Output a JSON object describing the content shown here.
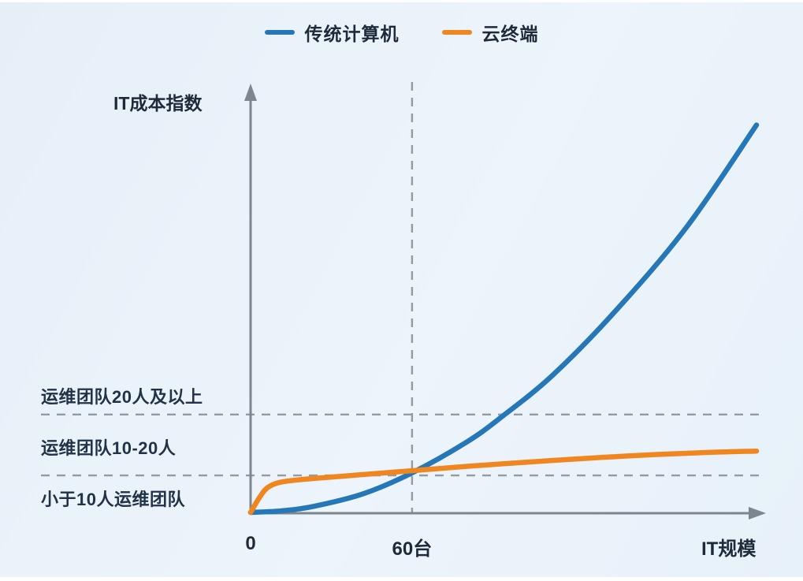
{
  "legend": {
    "items": [
      {
        "label": "传统计算机",
        "color": "#2577b8"
      },
      {
        "label": "云终端",
        "color": "#f0861f"
      }
    ]
  },
  "chart_data": {
    "type": "line",
    "title": "",
    "xlabel": "IT规模",
    "ylabel": "IT成本指数",
    "x_unit": "台",
    "xlim": [
      0,
      188
    ],
    "ylim": [
      0,
      100
    ],
    "grid": false,
    "legend_position": "top-center",
    "x_tick_labels": [
      {
        "label": "0",
        "x": 0
      },
      {
        "label": "60台",
        "x": 60
      }
    ],
    "series": [
      {
        "name": "传统计算机",
        "color": "#2577b8",
        "x": [
          0,
          12,
          24,
          42,
          60,
          80,
          93,
          112,
          135,
          162,
          188
        ],
        "y": [
          0,
          0.4,
          1.5,
          4.4,
          9.3,
          16.4,
          22.3,
          32.1,
          46.9,
          67.0,
          91.0
        ]
      },
      {
        "name": "云终端",
        "color": "#f0861f",
        "x": [
          0,
          3.5,
          6.5,
          12,
          24,
          42,
          60,
          82,
          112,
          141,
          170,
          188
        ],
        "y": [
          0,
          3.7,
          5.9,
          7.2,
          8.0,
          8.9,
          9.8,
          10.9,
          12.2,
          13.3,
          14.1,
          14.4
        ]
      }
    ],
    "reference_lines": {
      "vertical_x": 60,
      "horizontal_y": [
        23,
        8.7
      ],
      "band_labels": [
        "运维团队20人及以上",
        "运维团队10-20人",
        "小于10人运维团队"
      ]
    }
  },
  "colors": {
    "axis": "#7d858e",
    "dashed": "#949ba4",
    "text": "#1e2a3a",
    "background": "#e9f2fa"
  }
}
